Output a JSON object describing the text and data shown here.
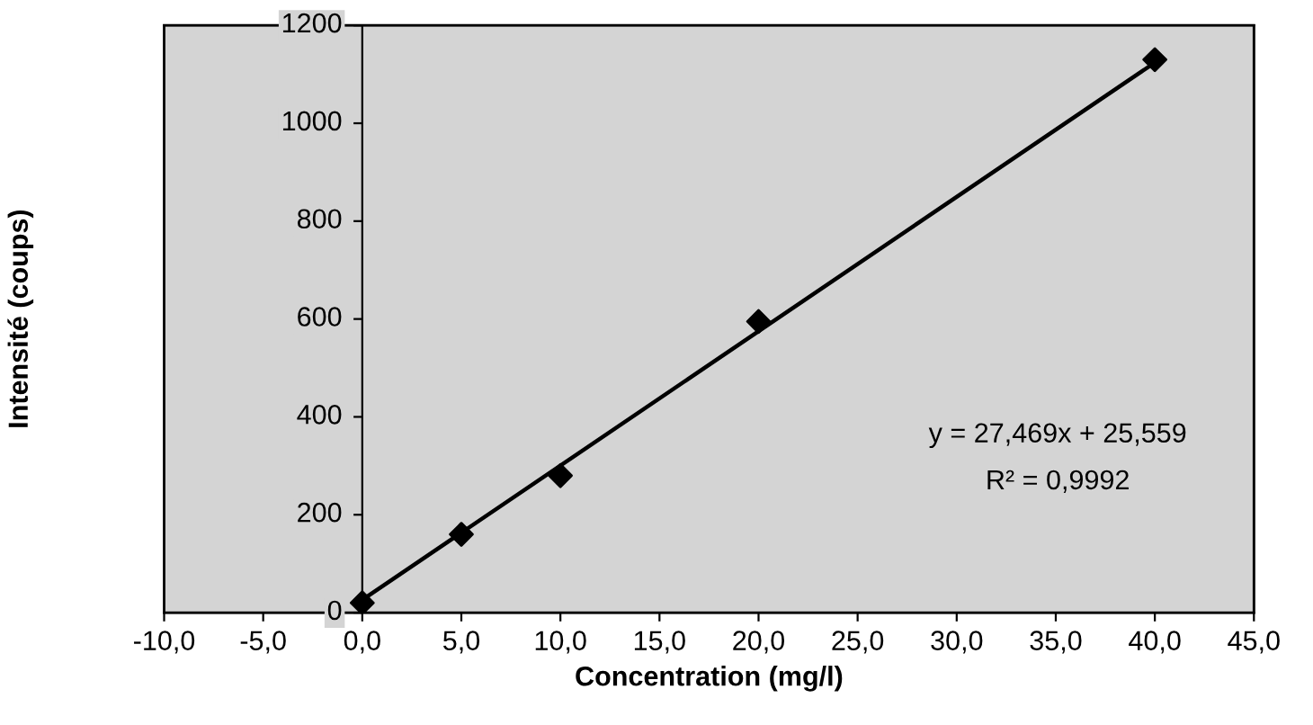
{
  "chart_data": {
    "type": "scatter",
    "xlabel": "Concentration (mg/l)",
    "ylabel": "Intensité (coups)",
    "series": [
      {
        "type": "scatter",
        "color": "#000000",
        "marker": "diamond",
        "x": [
          0,
          5,
          10,
          20,
          40
        ],
        "values": [
          20,
          160,
          280,
          595,
          1130
        ]
      },
      {
        "type": "line",
        "color": "#000000",
        "marker": "none",
        "x": [
          0,
          40
        ],
        "values": [
          26,
          1124
        ]
      }
    ],
    "xlim": [
      -10,
      45
    ],
    "xticks": [
      {
        "value": -10,
        "label": "-10,0"
      },
      {
        "value": -5,
        "label": "-5,0"
      },
      {
        "value": 0,
        "label": "0,0"
      },
      {
        "value": 5,
        "label": "5,0"
      },
      {
        "value": 10,
        "label": "10,0"
      },
      {
        "value": 15,
        "label": "15,0"
      },
      {
        "value": 20,
        "label": "20,0"
      },
      {
        "value": 25,
        "label": "25,0"
      },
      {
        "value": 30,
        "label": "30,0"
      },
      {
        "value": 35,
        "label": "35,0"
      },
      {
        "value": 40,
        "label": "40,0"
      },
      {
        "value": 45,
        "label": "45,0"
      }
    ],
    "ylim": [
      0,
      1200
    ],
    "yticks": [
      0,
      200,
      400,
      600,
      800,
      1000,
      1200
    ],
    "grid": false,
    "legend": false,
    "annotations": [
      "y = 27,469x + 25,559",
      "R² = 0,9992"
    ]
  }
}
